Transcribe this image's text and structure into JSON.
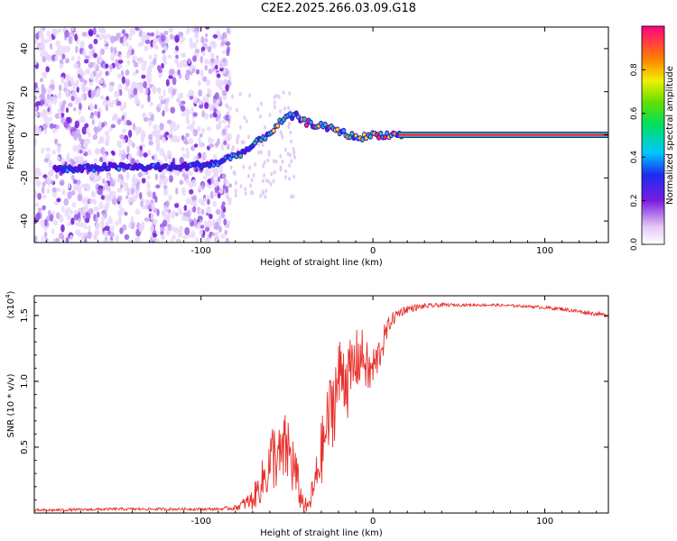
{
  "title": "C2E2.2025.266.03.09.G18",
  "chart_data": [
    {
      "type": "heatmap",
      "xlabel": "Height of straight line (km)",
      "ylabel": "Frequency (Hz)",
      "xlim": [
        -197,
        137
      ],
      "ylim": [
        -50,
        50
      ],
      "x_ticks": [
        -100,
        0,
        100
      ],
      "x_tick_labels": [
        "-100",
        "0",
        "100"
      ],
      "y_ticks": [
        -40,
        -20,
        0,
        20,
        40
      ],
      "y_tick_labels": [
        "-40",
        "-20",
        "0",
        "20",
        "40"
      ],
      "trace": {
        "x": [
          -185,
          -170,
          -160,
          -145,
          -130,
          -115,
          -100,
          -90,
          -82,
          -75,
          -68,
          -60,
          -55,
          -50,
          -45,
          -40,
          -35,
          -30,
          -25,
          -20,
          -15,
          -10,
          -5,
          0,
          5,
          10,
          15,
          20,
          137
        ],
        "freq": [
          -16,
          -16,
          -15,
          -15,
          -15,
          -15,
          -14,
          -13,
          -10,
          -8,
          -4,
          1,
          5,
          8,
          9,
          6,
          5,
          4,
          3,
          2,
          0,
          -1,
          -1,
          0,
          0,
          0,
          0,
          0,
          0
        ]
      },
      "noise_region_x": [
        -197,
        -83
      ],
      "colorbar": {
        "label": "Normalized spectral amplitude",
        "ticks": [
          0.0,
          0.2,
          0.4,
          0.6,
          0.8
        ],
        "tick_labels": [
          "0.0",
          "0.2",
          "0.4",
          "0.6",
          "0.8"
        ],
        "range": [
          0,
          1
        ]
      }
    },
    {
      "type": "line",
      "xlabel": "Height of straight line (km)",
      "ylabel": "SNR (10 * v/v)",
      "multiplier": "(x10",
      "multiplier_exp": "4",
      "multiplier_close": ")",
      "color": "#e8302c",
      "xlim": [
        -197,
        137
      ],
      "ylim": [
        0,
        1.65
      ],
      "x_ticks": [
        -100,
        0,
        100
      ],
      "x_tick_labels": [
        "-100",
        "0",
        "100"
      ],
      "y_ticks": [
        0.5,
        1.0,
        1.5
      ],
      "y_tick_labels": [
        "0.5",
        "1.0",
        "1.5"
      ],
      "envelope": {
        "x": [
          -197,
          -150,
          -90,
          -80,
          -70,
          -62,
          -58,
          -54,
          -50,
          -46,
          -42,
          -38,
          -34,
          -30,
          -26,
          -22,
          -18,
          -14,
          -10,
          -6,
          -2,
          2,
          6,
          10,
          15,
          20,
          30,
          40,
          50,
          70,
          90,
          110,
          120,
          137
        ],
        "y": [
          0.02,
          0.03,
          0.03,
          0.04,
          0.1,
          0.3,
          0.45,
          0.4,
          0.5,
          0.35,
          0.12,
          0.03,
          0.2,
          0.45,
          0.7,
          0.9,
          1.1,
          1.0,
          1.15,
          1.2,
          1.05,
          1.15,
          1.3,
          1.45,
          1.52,
          1.55,
          1.57,
          1.58,
          1.58,
          1.58,
          1.57,
          1.55,
          1.53,
          1.5
        ],
        "amp": [
          0.01,
          0.01,
          0.01,
          0.02,
          0.08,
          0.2,
          0.28,
          0.25,
          0.3,
          0.25,
          0.1,
          0.05,
          0.15,
          0.25,
          0.3,
          0.35,
          0.3,
          0.3,
          0.25,
          0.2,
          0.2,
          0.15,
          0.12,
          0.06,
          0.04,
          0.03,
          0.02,
          0.015,
          0.01,
          0.01,
          0.01,
          0.015,
          0.015,
          0.015
        ]
      }
    }
  ]
}
